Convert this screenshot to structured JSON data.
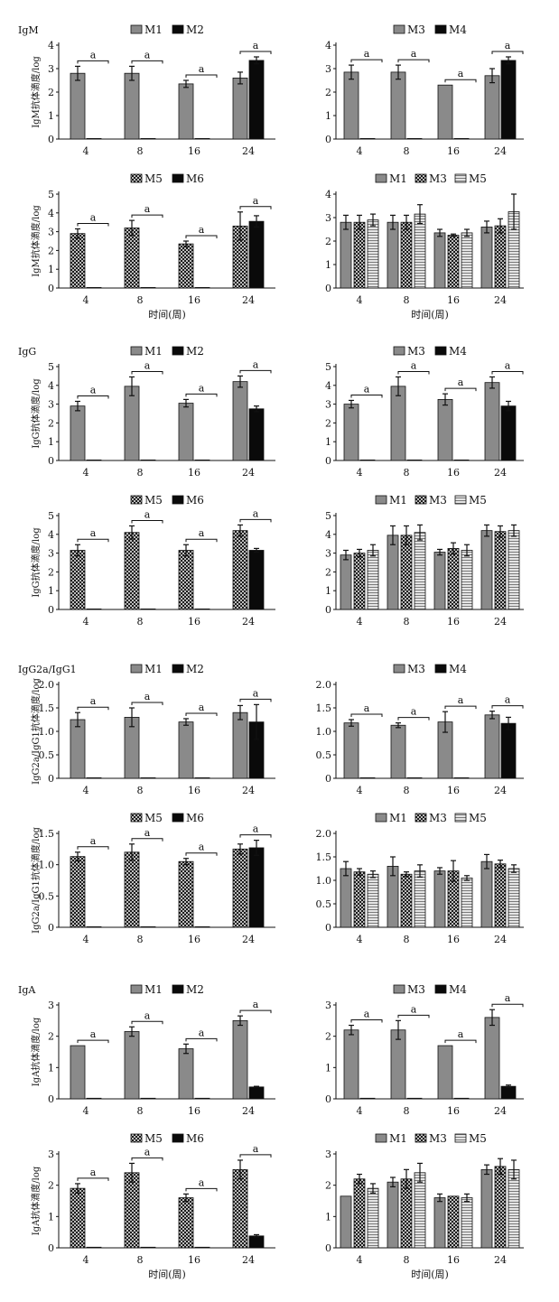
{
  "chart_data": {
    "type": "bar",
    "categories": [
      "4",
      "8",
      "16",
      "24"
    ],
    "xlabel": "时间(周)",
    "sig_label": "a",
    "series_styles": {
      "M1": "gray",
      "M2": "black",
      "M3": "gray",
      "M4": "black",
      "M5": "check",
      "M6": "black"
    },
    "compare_styles": [
      "gray",
      "check",
      "light"
    ],
    "colors": {
      "gray": "#8a8a8a",
      "black": "#0a0a0a",
      "light": "#d8d8d8",
      "check_fg": "#1a1a1a",
      "check_bg": "#bdbdbd"
    },
    "sections": [
      {
        "title": "IgM",
        "ylabel": "IgM抗体滴度/log",
        "panels": [
          {
            "legend": [
              "M1",
              "M2"
            ],
            "ylim": [
              0,
              4
            ],
            "yticks": [
              "0",
              "1",
              "2",
              "3",
              "4"
            ],
            "series": [
              {
                "name": "M1",
                "values": [
                  2.8,
                  2.8,
                  2.35,
                  2.6
                ],
                "errors": [
                  0.3,
                  0.3,
                  0.15,
                  0.25
                ]
              },
              {
                "name": "M2",
                "values": [
                  0.02,
                  0.02,
                  0.02,
                  3.35
                ],
                "errors": [
                  0,
                  0,
                  0,
                  0.15
                ]
              }
            ]
          },
          {
            "legend": [
              "M3",
              "M4"
            ],
            "ylim": [
              0,
              4
            ],
            "yticks": [
              "0",
              "1",
              "2",
              "3",
              "4"
            ],
            "series": [
              {
                "name": "M3",
                "values": [
                  2.85,
                  2.85,
                  2.3,
                  2.7
                ],
                "errors": [
                  0.3,
                  0.3,
                  0.0,
                  0.3
                ]
              },
              {
                "name": "M4",
                "values": [
                  0.02,
                  0.02,
                  0.02,
                  3.35
                ],
                "errors": [
                  0,
                  0,
                  0,
                  0.15
                ]
              }
            ]
          },
          {
            "legend": [
              "M5",
              "M6"
            ],
            "ylim": [
              0,
              5
            ],
            "yticks": [
              "0",
              "1",
              "2",
              "3",
              "4",
              "5"
            ],
            "series": [
              {
                "name": "M5",
                "values": [
                  2.9,
                  3.2,
                  2.35,
                  3.3
                ],
                "errors": [
                  0.25,
                  0.4,
                  0.15,
                  0.75
                ]
              },
              {
                "name": "M6",
                "values": [
                  0.02,
                  0.02,
                  0.02,
                  3.55
                ],
                "errors": [
                  0,
                  0,
                  0,
                  0.3
                ]
              }
            ]
          },
          {
            "legend": [
              "M1",
              "M3",
              "M5"
            ],
            "ylim": [
              0,
              4
            ],
            "yticks": [
              "0",
              "1",
              "2",
              "3",
              "4"
            ],
            "compare": true,
            "series": [
              {
                "name": "M1",
                "values": [
                  2.8,
                  2.8,
                  2.35,
                  2.6
                ],
                "errors": [
                  0.3,
                  0.3,
                  0.15,
                  0.25
                ]
              },
              {
                "name": "M3",
                "values": [
                  2.8,
                  2.8,
                  2.25,
                  2.65
                ],
                "errors": [
                  0.3,
                  0.3,
                  0.05,
                  0.3
                ]
              },
              {
                "name": "M5",
                "values": [
                  2.9,
                  3.15,
                  2.35,
                  3.25
                ],
                "errors": [
                  0.25,
                  0.4,
                  0.15,
                  0.75
                ]
              }
            ]
          }
        ]
      },
      {
        "title": "IgG",
        "ylabel": "IgG抗体滴度/log",
        "panels": [
          {
            "legend": [
              "M1",
              "M2"
            ],
            "ylim": [
              0,
              5
            ],
            "yticks": [
              "0",
              "1",
              "2",
              "3",
              "4",
              "5"
            ],
            "series": [
              {
                "name": "M1",
                "values": [
                  2.9,
                  3.95,
                  3.05,
                  4.2
                ],
                "errors": [
                  0.25,
                  0.5,
                  0.2,
                  0.3
                ]
              },
              {
                "name": "M2",
                "values": [
                  0.02,
                  0.02,
                  0.02,
                  2.75
                ],
                "errors": [
                  0,
                  0,
                  0,
                  0.15
                ]
              }
            ]
          },
          {
            "legend": [
              "M3",
              "M4"
            ],
            "ylim": [
              0,
              5
            ],
            "yticks": [
              "0",
              "1",
              "2",
              "3",
              "4",
              "5"
            ],
            "series": [
              {
                "name": "M3",
                "values": [
                  3.0,
                  3.95,
                  3.25,
                  4.15
                ],
                "errors": [
                  0.2,
                  0.5,
                  0.3,
                  0.3
                ]
              },
              {
                "name": "M4",
                "values": [
                  0.02,
                  0.02,
                  0.02,
                  2.9
                ],
                "errors": [
                  0,
                  0,
                  0,
                  0.25
                ]
              }
            ]
          },
          {
            "legend": [
              "M5",
              "M6"
            ],
            "ylim": [
              0,
              5
            ],
            "yticks": [
              "0",
              "1",
              "2",
              "3",
              "4",
              "5"
            ],
            "series": [
              {
                "name": "M5",
                "values": [
                  3.15,
                  4.1,
                  3.15,
                  4.2
                ],
                "errors": [
                  0.3,
                  0.35,
                  0.3,
                  0.3
                ]
              },
              {
                "name": "M6",
                "values": [
                  0.02,
                  0.02,
                  0.02,
                  3.15
                ],
                "errors": [
                  0,
                  0,
                  0,
                  0.1
                ]
              }
            ]
          },
          {
            "legend": [
              "M1",
              "M3",
              "M5"
            ],
            "ylim": [
              0,
              5
            ],
            "yticks": [
              "0",
              "1",
              "2",
              "3",
              "4",
              "5"
            ],
            "compare": true,
            "series": [
              {
                "name": "M1",
                "values": [
                  2.9,
                  3.95,
                  3.05,
                  4.2
                ],
                "errors": [
                  0.25,
                  0.5,
                  0.15,
                  0.3
                ]
              },
              {
                "name": "M3",
                "values": [
                  3.0,
                  3.95,
                  3.25,
                  4.15
                ],
                "errors": [
                  0.2,
                  0.5,
                  0.3,
                  0.3
                ]
              },
              {
                "name": "M5",
                "values": [
                  3.15,
                  4.1,
                  3.15,
                  4.2
                ],
                "errors": [
                  0.3,
                  0.4,
                  0.3,
                  0.3
                ]
              }
            ]
          }
        ]
      },
      {
        "title": "IgG2a/IgG1",
        "ylabel": "IgG2a/IgG1抗体滴度/log",
        "panels": [
          {
            "legend": [
              "M1",
              "M2"
            ],
            "ylim": [
              0,
              2.0
            ],
            "yticks": [
              "0",
              "0.5",
              "1.0",
              "1.5",
              "2.0"
            ],
            "series": [
              {
                "name": "M1",
                "values": [
                  1.25,
                  1.3,
                  1.2,
                  1.4
                ],
                "errors": [
                  0.15,
                  0.2,
                  0.07,
                  0.15
                ]
              },
              {
                "name": "M2",
                "values": [
                  0.0,
                  0.0,
                  0.0,
                  1.2
                ],
                "errors": [
                  0,
                  0,
                  0,
                  0.37
                ]
              }
            ]
          },
          {
            "legend": [
              "M3",
              "M4"
            ],
            "ylim": [
              0,
              2.0
            ],
            "yticks": [
              "0",
              "0.5",
              "1.0",
              "1.5",
              "2.0"
            ],
            "series": [
              {
                "name": "M3",
                "values": [
                  1.18,
                  1.13,
                  1.2,
                  1.35
                ],
                "errors": [
                  0.07,
                  0.05,
                  0.22,
                  0.08
                ]
              },
              {
                "name": "M4",
                "values": [
                  0.0,
                  0.0,
                  0.0,
                  1.17
                ],
                "errors": [
                  0,
                  0,
                  0,
                  0.13
                ]
              }
            ]
          },
          {
            "legend": [
              "M5",
              "M6"
            ],
            "ylim": [
              0,
              1.5
            ],
            "yticks": [
              "0",
              "0.5",
              "1.0",
              "1.5"
            ],
            "series": [
              {
                "name": "M5",
                "values": [
                  1.13,
                  1.2,
                  1.05,
                  1.25
                ],
                "errors": [
                  0.07,
                  0.13,
                  0.05,
                  0.08
                ]
              },
              {
                "name": "M6",
                "values": [
                  0.0,
                  0.0,
                  0.0,
                  1.27
                ],
                "errors": [
                  0,
                  0,
                  0,
                  0.12
                ]
              }
            ]
          },
          {
            "legend": [
              "M1",
              "M3",
              "M5"
            ],
            "ylim": [
              0,
              2.0
            ],
            "yticks": [
              "0",
              "0.5",
              "1.0",
              "1.5",
              "2.0"
            ],
            "compare": true,
            "series": [
              {
                "name": "M1",
                "values": [
                  1.25,
                  1.3,
                  1.2,
                  1.4
                ],
                "errors": [
                  0.15,
                  0.2,
                  0.07,
                  0.15
                ]
              },
              {
                "name": "M3",
                "values": [
                  1.18,
                  1.13,
                  1.2,
                  1.35
                ],
                "errors": [
                  0.07,
                  0.05,
                  0.22,
                  0.08
                ]
              },
              {
                "name": "M5",
                "values": [
                  1.13,
                  1.2,
                  1.05,
                  1.25
                ],
                "errors": [
                  0.07,
                  0.13,
                  0.05,
                  0.08
                ]
              }
            ]
          }
        ]
      },
      {
        "title": "IgA",
        "ylabel": "IgA抗体滴度/log",
        "panels": [
          {
            "legend": [
              "M1",
              "M2"
            ],
            "ylim": [
              0,
              3
            ],
            "yticks": [
              "0",
              "1",
              "2",
              "3"
            ],
            "series": [
              {
                "name": "M1",
                "values": [
                  1.7,
                  2.15,
                  1.6,
                  2.5
                ],
                "errors": [
                  0.0,
                  0.15,
                  0.15,
                  0.15
                ]
              },
              {
                "name": "M2",
                "values": [
                  0.02,
                  0.02,
                  0.02,
                  0.38
                ],
                "errors": [
                  0,
                  0,
                  0,
                  0.02
                ]
              }
            ]
          },
          {
            "legend": [
              "M3",
              "M4"
            ],
            "ylim": [
              0,
              3
            ],
            "yticks": [
              "0",
              "1",
              "2",
              "3"
            ],
            "series": [
              {
                "name": "M3",
                "values": [
                  2.2,
                  2.2,
                  1.7,
                  2.6
                ],
                "errors": [
                  0.15,
                  0.3,
                  0.0,
                  0.25
                ]
              },
              {
                "name": "M4",
                "values": [
                  0.02,
                  0.02,
                  0.02,
                  0.4
                ],
                "errors": [
                  0,
                  0,
                  0,
                  0.04
                ]
              }
            ]
          },
          {
            "legend": [
              "M5",
              "M6"
            ],
            "ylim": [
              0,
              3
            ],
            "yticks": [
              "0",
              "1",
              "2",
              "3"
            ],
            "series": [
              {
                "name": "M5",
                "values": [
                  1.9,
                  2.4,
                  1.6,
                  2.5
                ],
                "errors": [
                  0.15,
                  0.3,
                  0.12,
                  0.3
                ]
              },
              {
                "name": "M6",
                "values": [
                  0.02,
                  0.02,
                  0.02,
                  0.38
                ],
                "errors": [
                  0,
                  0,
                  0,
                  0.04
                ]
              }
            ]
          },
          {
            "legend": [
              "M1",
              "M3",
              "M5"
            ],
            "ylim": [
              0,
              3
            ],
            "yticks": [
              "0",
              "1",
              "2",
              "3"
            ],
            "compare": true,
            "series": [
              {
                "name": "M1",
                "values": [
                  1.65,
                  2.1,
                  1.6,
                  2.5
                ],
                "errors": [
                  0.0,
                  0.15,
                  0.12,
                  0.15
                ]
              },
              {
                "name": "M3",
                "values": [
                  2.2,
                  2.2,
                  1.65,
                  2.6
                ],
                "errors": [
                  0.15,
                  0.3,
                  0.0,
                  0.25
                ]
              },
              {
                "name": "M5",
                "values": [
                  1.9,
                  2.4,
                  1.6,
                  2.5
                ],
                "errors": [
                  0.15,
                  0.3,
                  0.12,
                  0.3
                ]
              }
            ]
          }
        ]
      }
    ]
  }
}
